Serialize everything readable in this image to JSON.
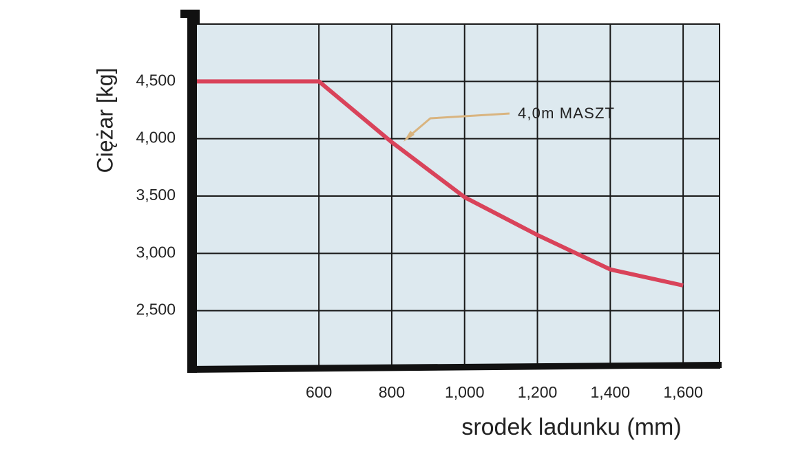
{
  "chart_data": {
    "type": "line",
    "x_label": "srodek ladunku (mm)",
    "y_label": "Ciężar [kg]",
    "annotation": "4,0m MASZT",
    "x": [
      250,
      600,
      800,
      1000,
      1200,
      1400,
      1600
    ],
    "values": [
      4500,
      4500,
      3970,
      3490,
      3160,
      2860,
      2720
    ],
    "color": "#d9435a",
    "xlim": [
      250,
      1700
    ],
    "ylim": [
      2000,
      5000
    ],
    "xticks": [
      600,
      800,
      {
        "value": 1000,
        "label": "1,000"
      },
      {
        "value": 1200,
        "label": "1,200"
      },
      {
        "value": 1400,
        "label": "1,400"
      },
      {
        "value": 1600,
        "label": "1,600"
      }
    ],
    "yticks": [
      {
        "value": 2500,
        "label": "2,500"
      },
      {
        "value": 3000,
        "label": "3,000"
      },
      {
        "value": 3500,
        "label": "3,500"
      },
      {
        "value": 4000,
        "label": "4,000"
      },
      {
        "value": 4500,
        "label": "4,500"
      }
    ],
    "grid": true
  }
}
